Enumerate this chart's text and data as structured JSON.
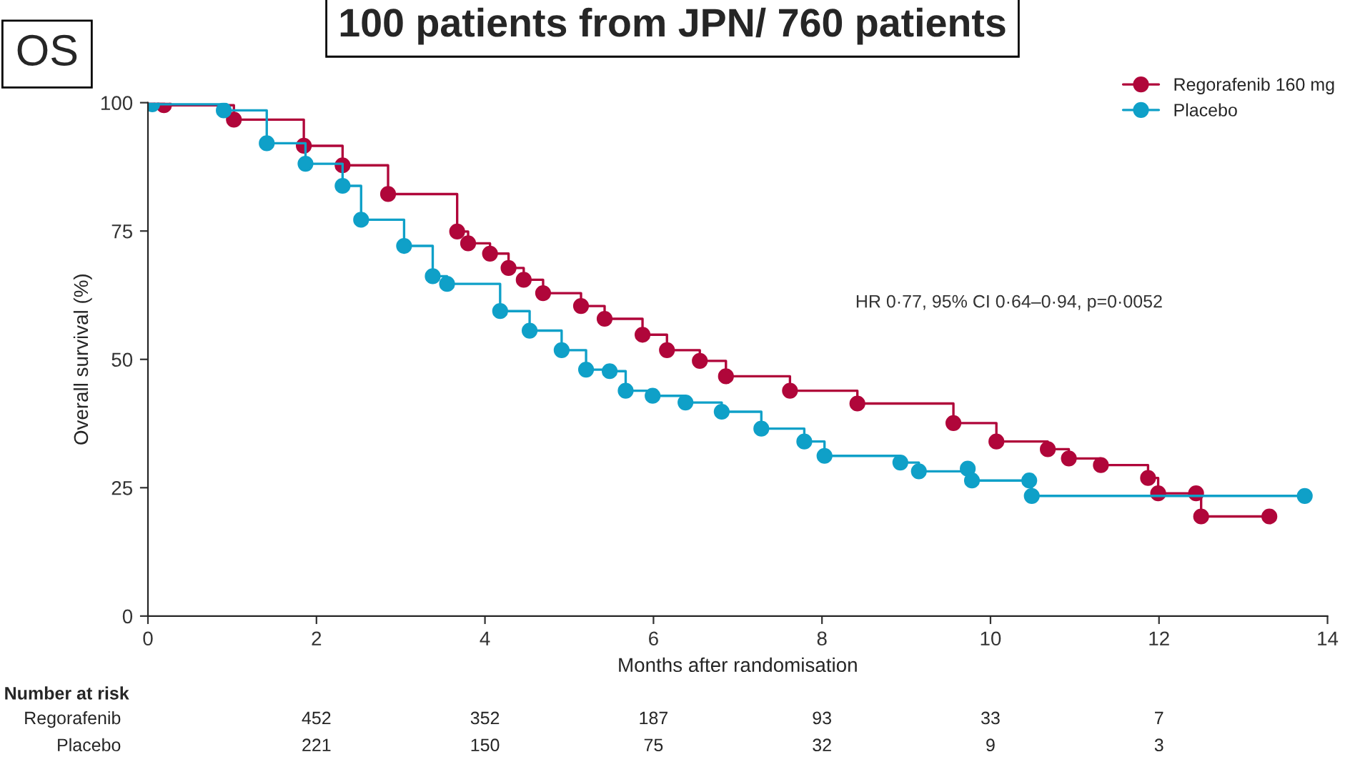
{
  "chart_data": {
    "type": "step",
    "title": "100 patients from JPN/ 760 patients",
    "xlabel": "Months after randomisation",
    "ylabel": "Overall survival (%)",
    "xlim": [
      0,
      14
    ],
    "xticks": [
      0,
      2,
      4,
      6,
      8,
      10,
      12,
      14
    ],
    "ylim": [
      0,
      100
    ],
    "yticks": [
      0,
      25,
      50,
      75,
      100
    ],
    "grid": false,
    "legend": "top right",
    "marker": "circle",
    "line_style": "solid",
    "series": [
      {
        "name": "Regorafenib 160 mg",
        "color": "#b0063a",
        "x": [
          0,
          0.19,
          1.02,
          1.85,
          2.31,
          2.85,
          3.67,
          3.8,
          4.06,
          4.28,
          4.46,
          4.69,
          5.14,
          5.42,
          5.87,
          6.16,
          6.55,
          6.86,
          7.62,
          8.42,
          9.56,
          10.07,
          10.68,
          10.93,
          11.31,
          11.87,
          11.99,
          12.44,
          12.5,
          13.31
        ],
        "values": [
          100,
          99.5,
          96.7,
          91.6,
          87.8,
          82.2,
          74.9,
          72.6,
          70.6,
          67.8,
          65.5,
          62.9,
          60.4,
          57.9,
          54.8,
          51.8,
          49.7,
          46.7,
          43.9,
          41.4,
          37.6,
          34.0,
          32.5,
          30.7,
          29.4,
          26.9,
          23.9,
          23.9,
          19.4,
          19.4
        ]
      },
      {
        "name": "Placebo",
        "color": "#0fa0c8",
        "x": [
          0.05,
          0.9,
          1.41,
          1.87,
          2.31,
          2.53,
          3.04,
          3.38,
          3.55,
          4.18,
          4.53,
          4.91,
          5.2,
          5.48,
          5.67,
          5.99,
          6.38,
          6.81,
          7.28,
          7.79,
          8.03,
          8.93,
          9.15,
          9.73,
          9.78,
          10.46,
          10.49,
          13.73
        ],
        "values": [
          99.7,
          98.5,
          92.1,
          88.1,
          83.8,
          77.2,
          72.1,
          66.2,
          64.7,
          59.4,
          55.6,
          51.8,
          48.0,
          47.7,
          43.9,
          42.9,
          41.6,
          39.8,
          36.5,
          34.0,
          31.2,
          29.9,
          28.2,
          28.7,
          26.4,
          26.4,
          23.4,
          23.4
        ]
      }
    ],
    "annotations": [
      "OS",
      "HR 0·77, 95% CI 0·64–0·94, p=0·0052",
      "Number at risk",
      "Regorafenib",
      "452",
      "352",
      "187",
      "93",
      "33",
      "7",
      "Placebo",
      "221",
      "150",
      "75",
      "32",
      "9",
      "3"
    ]
  }
}
